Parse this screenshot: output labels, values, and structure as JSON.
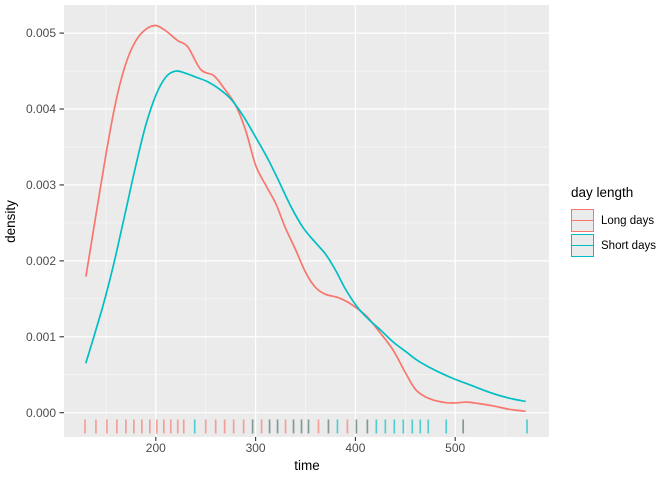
{
  "figure": {
    "background": "#FFFFFF",
    "panel_background": "#EBEBEB",
    "grid_color": "#FFFFFF",
    "axis_tick_color": "#333333",
    "tick_label_color": "#4D4D4D",
    "text_color": "#000000"
  },
  "legend": {
    "title": "day length",
    "key_fill": "#EBEBEB",
    "items": [
      {
        "label": "Long days",
        "color": "#F8766D"
      },
      {
        "label": "Short days",
        "color": "#00BFC4"
      }
    ]
  },
  "chart_data": {
    "type": "line",
    "subtype": "kernel-density-with-rug",
    "title": "",
    "xlabel": "time",
    "ylabel": "density",
    "xlim": [
      108,
      594
    ],
    "ylim": [
      -0.00032,
      0.00537
    ],
    "grid": true,
    "legend_position": "right",
    "x_ticks": {
      "values": [
        200,
        300,
        400,
        500
      ],
      "labels": [
        "200",
        "300",
        "400",
        "500"
      ]
    },
    "x_minor_ticks": [
      150,
      250,
      350,
      450,
      550
    ],
    "y_ticks": {
      "values": [
        0,
        0.001,
        0.002,
        0.003,
        0.004,
        0.005
      ],
      "labels": [
        "0.000",
        "0.001",
        "0.002",
        "0.003",
        "0.004",
        "0.005"
      ]
    },
    "y_minor_ticks": [
      0.0005,
      0.0015,
      0.0025,
      0.0035,
      0.0045
    ],
    "series": [
      {
        "name": "Long days",
        "color": "#F8766D",
        "points": [
          [
            130,
            0.0018
          ],
          [
            140,
            0.0026
          ],
          [
            150,
            0.0034
          ],
          [
            160,
            0.0041
          ],
          [
            170,
            0.0046
          ],
          [
            180,
            0.0049
          ],
          [
            190,
            0.00505
          ],
          [
            200,
            0.0051
          ],
          [
            210,
            0.00503
          ],
          [
            222,
            0.0049
          ],
          [
            232,
            0.00482
          ],
          [
            245,
            0.00452
          ],
          [
            258,
            0.00444
          ],
          [
            268,
            0.00428
          ],
          [
            280,
            0.00405
          ],
          [
            290,
            0.00372
          ],
          [
            300,
            0.00326
          ],
          [
            310,
            0.003
          ],
          [
            320,
            0.00276
          ],
          [
            330,
            0.00243
          ],
          [
            340,
            0.00215
          ],
          [
            350,
            0.00185
          ],
          [
            360,
            0.00165
          ],
          [
            370,
            0.00156
          ],
          [
            382,
            0.00152
          ],
          [
            392,
            0.00146
          ],
          [
            402,
            0.00137
          ],
          [
            412,
            0.00126
          ],
          [
            425,
            0.00105
          ],
          [
            438,
            0.00082
          ],
          [
            450,
            0.00053
          ],
          [
            460,
            0.00031
          ],
          [
            470,
            0.00021
          ],
          [
            480,
            0.00016
          ],
          [
            492,
            0.00013
          ],
          [
            502,
            0.00013
          ],
          [
            512,
            0.00014
          ],
          [
            524,
            0.00012
          ],
          [
            538,
            9e-05
          ],
          [
            552,
            5e-05
          ],
          [
            562,
            3e-05
          ],
          [
            570,
            2e-05
          ]
        ]
      },
      {
        "name": "Short days",
        "color": "#00BFC4",
        "points": [
          [
            130,
            0.00066
          ],
          [
            140,
            0.00109
          ],
          [
            150,
            0.00155
          ],
          [
            160,
            0.00208
          ],
          [
            170,
            0.00267
          ],
          [
            180,
            0.00326
          ],
          [
            190,
            0.00379
          ],
          [
            200,
            0.00418
          ],
          [
            210,
            0.00442
          ],
          [
            220,
            0.0045
          ],
          [
            230,
            0.00447
          ],
          [
            240,
            0.00442
          ],
          [
            252,
            0.00436
          ],
          [
            264,
            0.00426
          ],
          [
            276,
            0.00412
          ],
          [
            288,
            0.0039
          ],
          [
            300,
            0.00363
          ],
          [
            312,
            0.00335
          ],
          [
            324,
            0.00303
          ],
          [
            336,
            0.0027
          ],
          [
            348,
            0.00243
          ],
          [
            360,
            0.00224
          ],
          [
            370,
            0.00209
          ],
          [
            380,
            0.00188
          ],
          [
            390,
            0.00163
          ],
          [
            402,
            0.00139
          ],
          [
            414,
            0.00122
          ],
          [
            426,
            0.00108
          ],
          [
            438,
            0.00093
          ],
          [
            450,
            0.00081
          ],
          [
            462,
            0.00069
          ],
          [
            474,
            0.0006
          ],
          [
            486,
            0.00052
          ],
          [
            498,
            0.00045
          ],
          [
            510,
            0.00039
          ],
          [
            522,
            0.00033
          ],
          [
            534,
            0.00027
          ],
          [
            546,
            0.00022
          ],
          [
            558,
            0.00018
          ],
          [
            570,
            0.00015
          ]
        ]
      }
    ],
    "rug": {
      "tick_colors": {
        "long": "rgba(248,118,109,0.65)",
        "short": "rgba(0,191,196,0.65)",
        "overlap": "rgba(45,85,82,0.55)"
      },
      "ticks": [
        [
          129,
          "long"
        ],
        [
          140,
          "long"
        ],
        [
          151,
          "long"
        ],
        [
          161,
          "long"
        ],
        [
          170,
          "long"
        ],
        [
          178,
          "long"
        ],
        [
          186,
          "long"
        ],
        [
          194,
          "long"
        ],
        [
          201,
          "long"
        ],
        [
          208,
          "long"
        ],
        [
          215,
          "long"
        ],
        [
          222,
          "long"
        ],
        [
          228,
          "long"
        ],
        [
          239,
          "short"
        ],
        [
          250,
          "long"
        ],
        [
          260,
          "long"
        ],
        [
          269,
          "long"
        ],
        [
          278,
          "long"
        ],
        [
          288,
          "long"
        ],
        [
          297,
          "overlap"
        ],
        [
          306,
          "long"
        ],
        [
          314,
          "overlap"
        ],
        [
          322,
          "overlap"
        ],
        [
          330,
          "long"
        ],
        [
          338,
          "overlap"
        ],
        [
          346,
          "overlap"
        ],
        [
          353,
          "overlap"
        ],
        [
          363,
          "long"
        ],
        [
          373,
          "overlap"
        ],
        [
          382,
          "short"
        ],
        [
          392,
          "long"
        ],
        [
          401,
          "overlap"
        ],
        [
          412,
          "overlap"
        ],
        [
          421,
          "short"
        ],
        [
          430,
          "short"
        ],
        [
          439,
          "short"
        ],
        [
          448,
          "short"
        ],
        [
          457,
          "short"
        ],
        [
          465,
          "short"
        ],
        [
          473,
          "short"
        ],
        [
          491,
          "short"
        ],
        [
          508,
          "overlap"
        ],
        [
          572,
          "short"
        ]
      ]
    }
  }
}
